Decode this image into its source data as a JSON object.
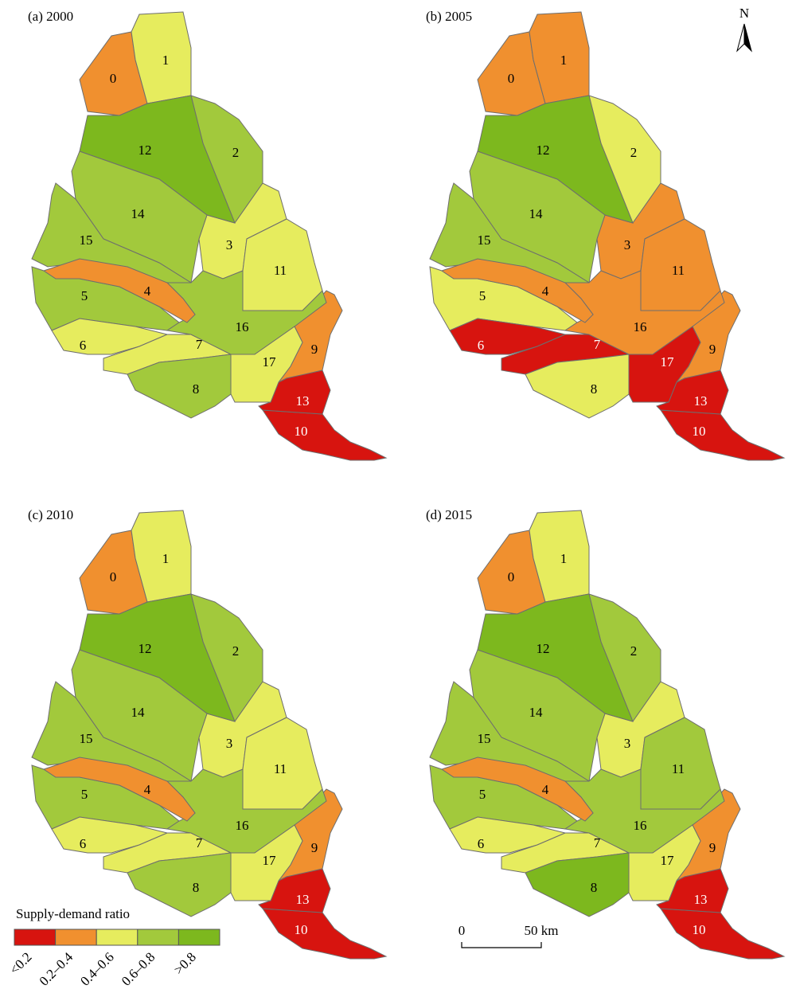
{
  "panels": [
    {
      "title": "(a) 2000",
      "regions": [
        {
          "label": "0",
          "class": 1
        },
        {
          "label": "1",
          "class": 2
        },
        {
          "label": "2",
          "class": 3
        },
        {
          "label": "3",
          "class": 2
        },
        {
          "label": "4",
          "class": 1
        },
        {
          "label": "5",
          "class": 3
        },
        {
          "label": "6",
          "class": 2
        },
        {
          "label": "7",
          "class": 2
        },
        {
          "label": "8",
          "class": 3
        },
        {
          "label": "9",
          "class": 1
        },
        {
          "label": "10",
          "class": 0
        },
        {
          "label": "11",
          "class": 2
        },
        {
          "label": "12",
          "class": 4
        },
        {
          "label": "13",
          "class": 0
        },
        {
          "label": "14",
          "class": 3
        },
        {
          "label": "15",
          "class": 3
        },
        {
          "label": "16",
          "class": 3
        },
        {
          "label": "17",
          "class": 2
        }
      ]
    },
    {
      "title": "(b) 2005",
      "regions": [
        {
          "label": "0",
          "class": 1
        },
        {
          "label": "1",
          "class": 1
        },
        {
          "label": "2",
          "class": 2
        },
        {
          "label": "3",
          "class": 1
        },
        {
          "label": "4",
          "class": 1
        },
        {
          "label": "5",
          "class": 2
        },
        {
          "label": "6",
          "class": 0
        },
        {
          "label": "7",
          "class": 0
        },
        {
          "label": "8",
          "class": 2
        },
        {
          "label": "9",
          "class": 1
        },
        {
          "label": "10",
          "class": 0
        },
        {
          "label": "11",
          "class": 1
        },
        {
          "label": "12",
          "class": 4
        },
        {
          "label": "13",
          "class": 0
        },
        {
          "label": "14",
          "class": 3
        },
        {
          "label": "15",
          "class": 3
        },
        {
          "label": "16",
          "class": 1
        },
        {
          "label": "17",
          "class": 0
        }
      ]
    },
    {
      "title": "(c) 2010",
      "regions": [
        {
          "label": "0",
          "class": 1
        },
        {
          "label": "1",
          "class": 2
        },
        {
          "label": "2",
          "class": 3
        },
        {
          "label": "3",
          "class": 2
        },
        {
          "label": "4",
          "class": 1
        },
        {
          "label": "5",
          "class": 3
        },
        {
          "label": "6",
          "class": 2
        },
        {
          "label": "7",
          "class": 2
        },
        {
          "label": "8",
          "class": 3
        },
        {
          "label": "9",
          "class": 1
        },
        {
          "label": "10",
          "class": 0
        },
        {
          "label": "11",
          "class": 2
        },
        {
          "label": "12",
          "class": 4
        },
        {
          "label": "13",
          "class": 0
        },
        {
          "label": "14",
          "class": 3
        },
        {
          "label": "15",
          "class": 3
        },
        {
          "label": "16",
          "class": 3
        },
        {
          "label": "17",
          "class": 2
        }
      ]
    },
    {
      "title": "(d) 2015",
      "regions": [
        {
          "label": "0",
          "class": 1
        },
        {
          "label": "1",
          "class": 2
        },
        {
          "label": "2",
          "class": 3
        },
        {
          "label": "3",
          "class": 2
        },
        {
          "label": "4",
          "class": 1
        },
        {
          "label": "5",
          "class": 3
        },
        {
          "label": "6",
          "class": 2
        },
        {
          "label": "7",
          "class": 2
        },
        {
          "label": "8",
          "class": 4
        },
        {
          "label": "9",
          "class": 1
        },
        {
          "label": "10",
          "class": 0
        },
        {
          "label": "11",
          "class": 3
        },
        {
          "label": "12",
          "class": 4
        },
        {
          "label": "13",
          "class": 0
        },
        {
          "label": "14",
          "class": 3
        },
        {
          "label": "15",
          "class": 3
        },
        {
          "label": "16",
          "class": 3
        },
        {
          "label": "17",
          "class": 2
        }
      ]
    }
  ],
  "legend": {
    "title": "Supply-demand ratio",
    "classes": [
      {
        "label": "<0.2",
        "color": "#d7140f"
      },
      {
        "label": "0.2–0.4",
        "color": "#f0902f"
      },
      {
        "label": "0.4–0.6",
        "color": "#e6ec5e"
      },
      {
        "label": "0.6–0.8",
        "color": "#a2c93c"
      },
      {
        "label": ">0.8",
        "color": "#7db81e"
      }
    ]
  },
  "north": "N",
  "scale": {
    "labels": [
      "0",
      "50 km"
    ]
  }
}
